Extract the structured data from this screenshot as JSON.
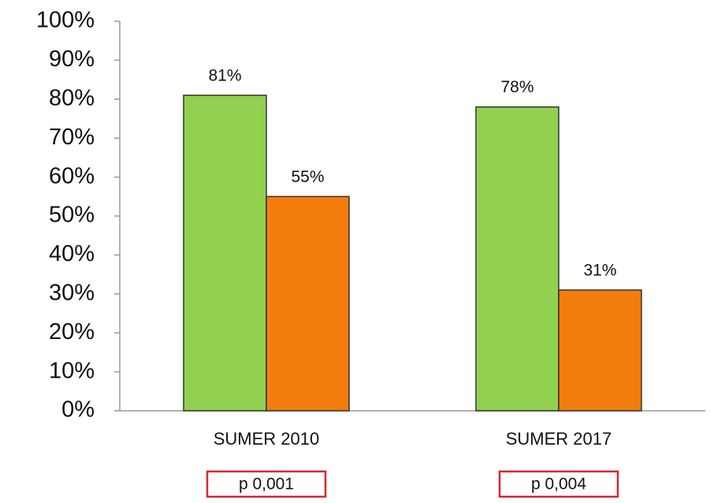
{
  "chart_data": {
    "type": "bar",
    "categories": [
      "SUMER 2010",
      "SUMER 2017"
    ],
    "series": [
      {
        "color": "#92d050",
        "values": [
          81,
          78
        ],
        "value_labels": [
          "81%",
          "78%"
        ]
      },
      {
        "color": "#f27d0c",
        "values": [
          55,
          31
        ],
        "value_labels": [
          "55%",
          "31%"
        ]
      }
    ],
    "ylim": [
      0,
      100
    ],
    "yticks": [
      {
        "value": 0,
        "label": "0%"
      },
      {
        "value": 10,
        "label": "10%"
      },
      {
        "value": 20,
        "label": "20%"
      },
      {
        "value": 30,
        "label": "30%"
      },
      {
        "value": 40,
        "label": "40%"
      },
      {
        "value": 50,
        "label": "50%"
      },
      {
        "value": 60,
        "label": "60%"
      },
      {
        "value": 70,
        "label": "70%"
      },
      {
        "value": 80,
        "label": "80%"
      },
      {
        "value": 90,
        "label": "90%"
      },
      {
        "value": 100,
        "label": "100%"
      }
    ],
    "annotations": [
      "p 0,001",
      "p 0,004"
    ]
  }
}
